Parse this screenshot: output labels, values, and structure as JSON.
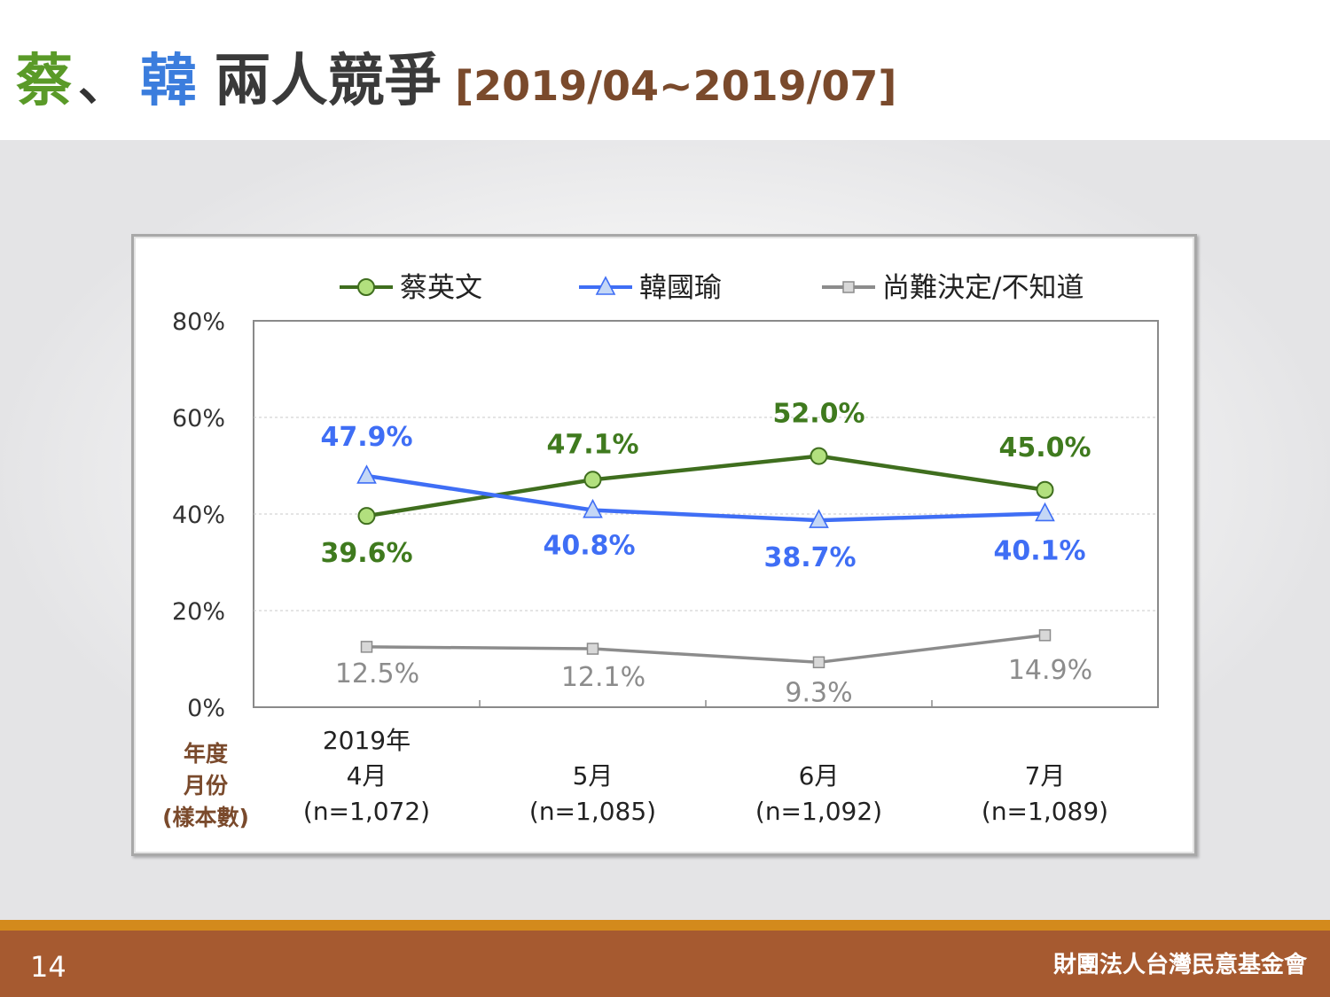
{
  "title": {
    "part1": "蔡",
    "separator": "、",
    "part2": "韓",
    "part3": "兩人競爭",
    "period": "[2019/04~2019/07]",
    "colors": {
      "part1": "#5a9a28",
      "part2": "#3b7ddd",
      "part3": "#3a3a3a",
      "period": "#7a4a2c"
    }
  },
  "chart_data": {
    "type": "line",
    "categories": [
      {
        "lines": [
          "2019年",
          "4月",
          "(n=1,072)"
        ]
      },
      {
        "lines": [
          "5月",
          "(n=1,085)"
        ]
      },
      {
        "lines": [
          "6月",
          "(n=1,092)"
        ]
      },
      {
        "lines": [
          "7月",
          "(n=1,089)"
        ]
      }
    ],
    "row_header": [
      "年度",
      "月份",
      "(樣本數)"
    ],
    "y_ticks": [
      "0%",
      "20%",
      "40%",
      "60%",
      "80%"
    ],
    "ylim": [
      0,
      80
    ],
    "grid": true,
    "legend_position": "top",
    "series": [
      {
        "name": "蔡英文",
        "values": [
          39.6,
          47.1,
          52.0,
          45.0
        ],
        "labels": [
          "39.6%",
          "47.1%",
          "52.0%",
          "45.0%"
        ],
        "color": "#3f6e1e",
        "label_color": "#3f7a1e",
        "marker": "circle",
        "marker_fill": "#b2e07e"
      },
      {
        "name": "韓國瑜",
        "values": [
          47.9,
          40.8,
          38.7,
          40.1
        ],
        "labels": [
          "47.9%",
          "40.8%",
          "38.7%",
          "40.1%"
        ],
        "color": "#3f6ef5",
        "label_color": "#3f6ef5",
        "marker": "triangle",
        "marker_fill": "#c4d7f6"
      },
      {
        "name": "尚難決定/不知道",
        "values": [
          12.5,
          12.1,
          9.3,
          14.9
        ],
        "labels": [
          "12.5%",
          "12.1%",
          "9.3%",
          "14.9%"
        ],
        "color": "#8c8c8c",
        "label_color": "#8c8c8c",
        "marker": "square",
        "marker_fill": "#d8d8d8"
      }
    ]
  },
  "footer": {
    "page_number": "14",
    "org_name": "財團法人台灣民意基金會"
  }
}
